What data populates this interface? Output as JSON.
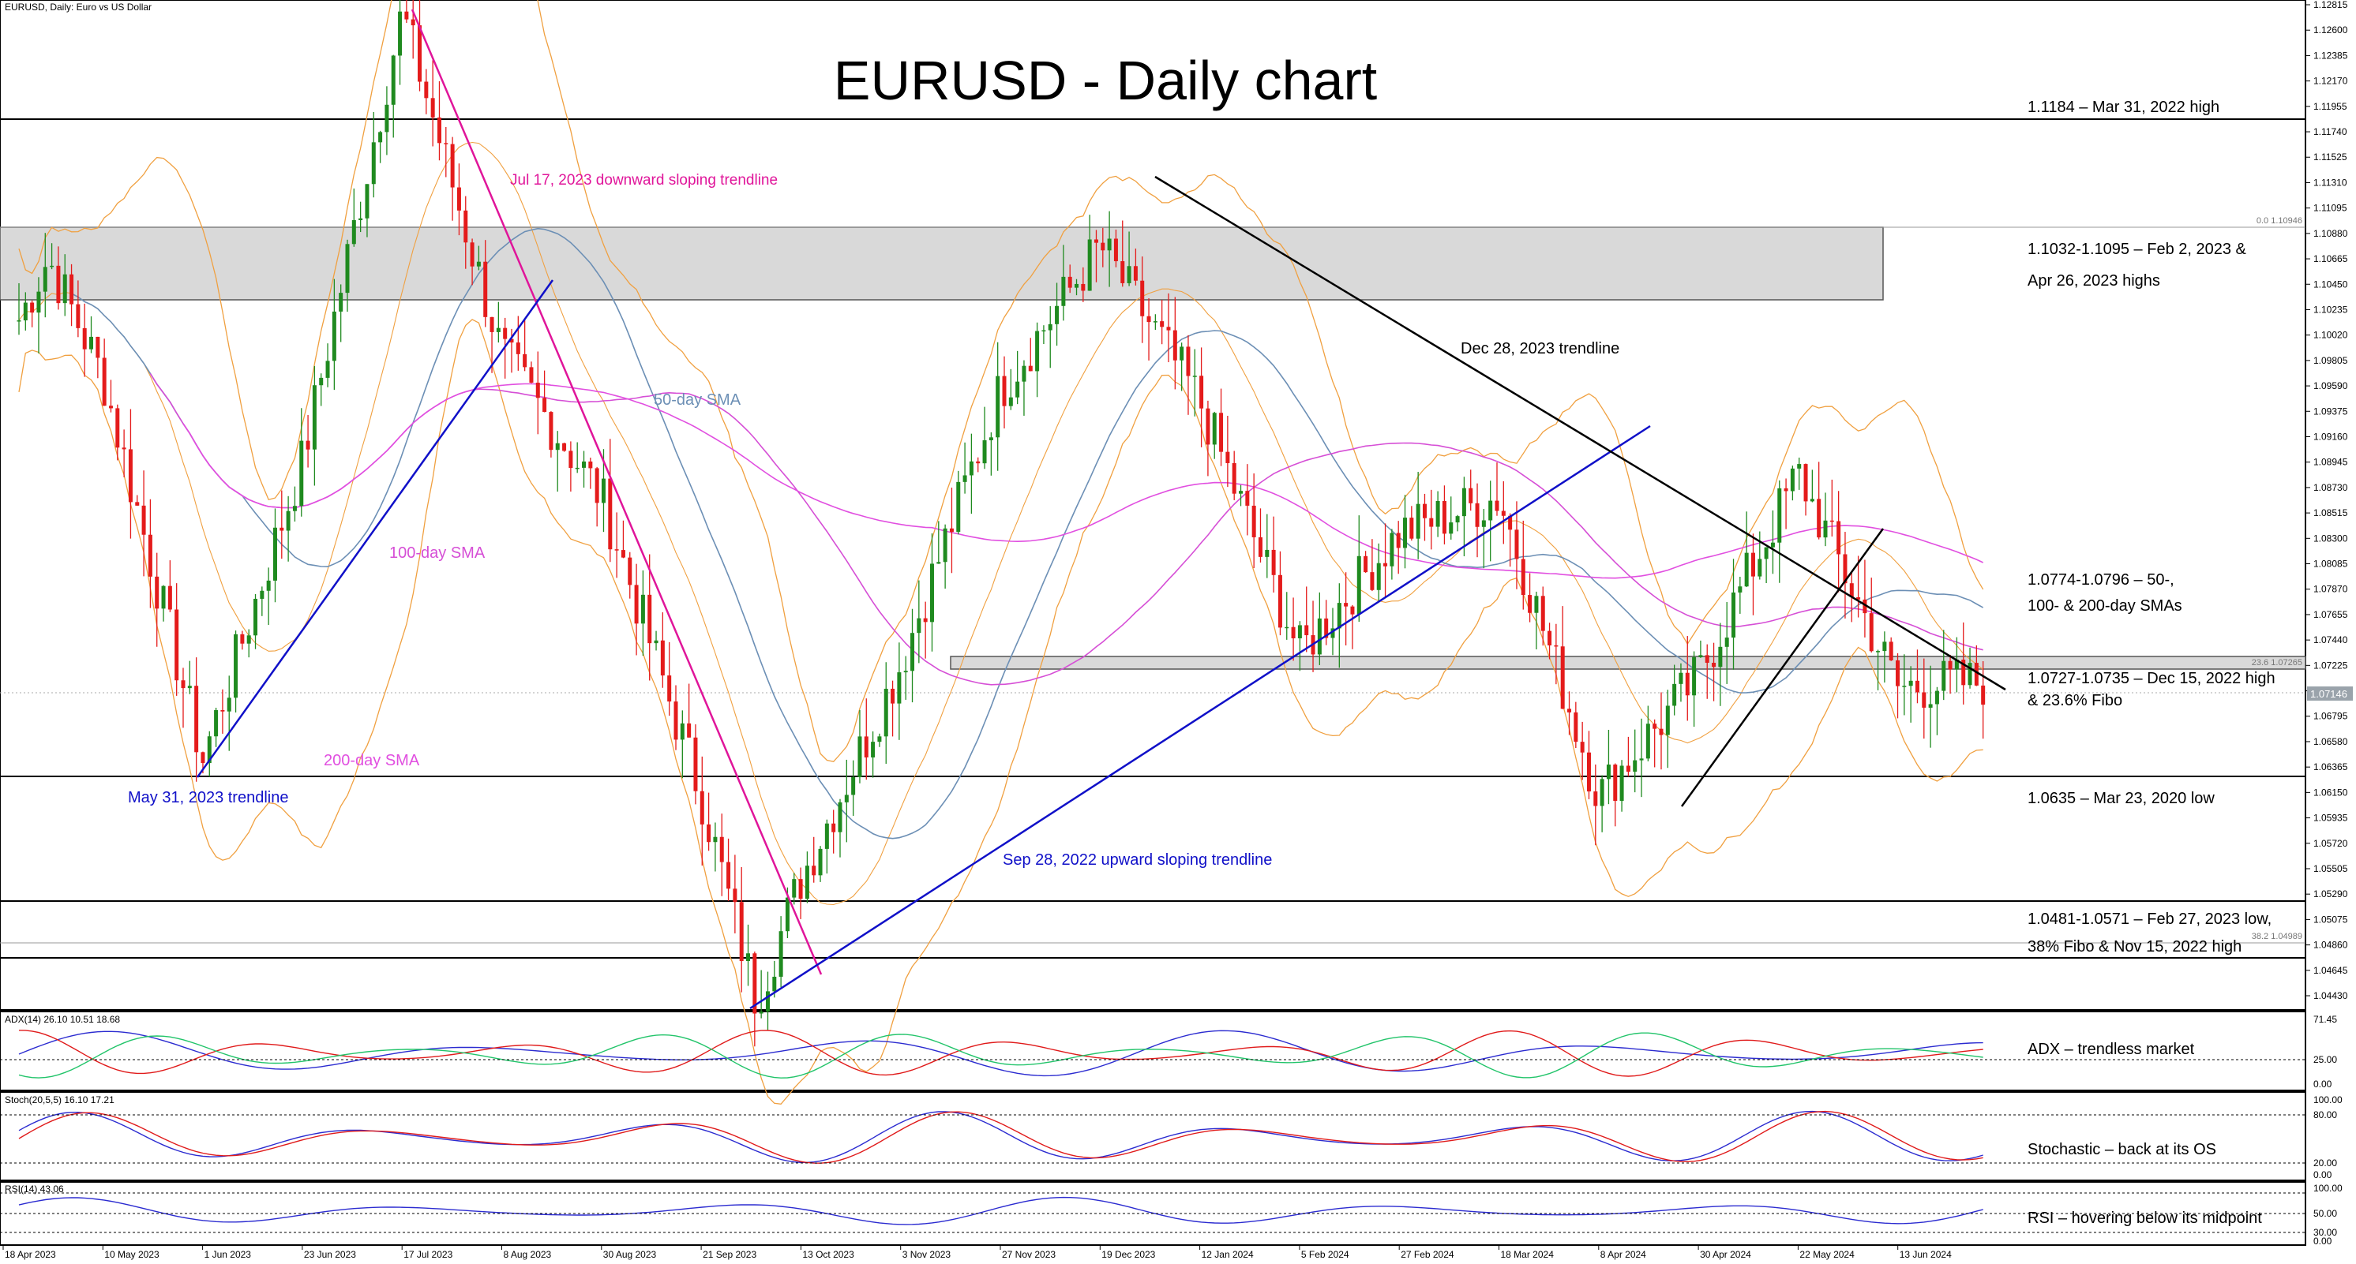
{
  "header": {
    "symbol_label": "EURUSD, Daily:  Euro vs US Dollar",
    "title": "EURUSD - Daily chart"
  },
  "price_axis_labels": [
    "1.12815",
    "1.12600",
    "1.12385",
    "1.12170",
    "1.11955",
    "1.11740",
    "1.11525",
    "1.11310",
    "1.11095",
    "1.10880",
    "1.10665",
    "1.10450",
    "1.10235",
    "1.10020",
    "1.09805",
    "1.09590",
    "1.09375",
    "1.09160",
    "1.08945",
    "1.08730",
    "1.08515",
    "1.08300",
    "1.08085",
    "1.07870",
    "1.07655",
    "1.07440",
    "1.07225",
    "1.07010",
    "1.06795",
    "1.06580",
    "1.06365",
    "1.06150",
    "1.05935",
    "1.05720",
    "1.05505",
    "1.05290",
    "1.05075",
    "1.04860",
    "1.04645",
    "1.04430"
  ],
  "current_price_tag": "1.07146",
  "date_labels": [
    "18 Apr 2023",
    "10 May 2023",
    "1 Jun 2023",
    "23 Jun 2023",
    "17 Jul 2023",
    "8 Aug 2023",
    "30 Aug 2023",
    "21 Sep 2023",
    "13 Oct 2023",
    "3 Nov 2023",
    "27 Nov 2023",
    "19 Dec 2023",
    "12 Jan 2024",
    "5 Feb 2024",
    "27 Feb 2024",
    "18 Mar 2024",
    "8 Apr 2024",
    "30 Apr 2024",
    "22 May 2024",
    "13 Jun 2024"
  ],
  "annotations": {
    "level_1184": "1.1184 – Mar 31, 2022 high",
    "zone_1032_1": "1.1032-1.1095 – Feb 2, 2023 &",
    "zone_1032_2": "Apr 26, 2023 highs",
    "smas_1": "1.0774-1.0796 – 50-,",
    "smas_2": "100- & 200-day SMAs",
    "zone_0727_1": "1.0727-1.0735 – Dec 15, 2022 high",
    "zone_0727_2": "& 23.6% Fibo",
    "level_0635": "1.0635 – Mar 23, 2020 low",
    "zone_0481_1": "1.0481-1.0571 – Feb 27, 2023 low,",
    "zone_0481_2": "38% Fibo & Nov 15, 2022 high",
    "fib_0": "0.0 1.10946",
    "fib_236": "23.6 1.07265",
    "fib_382": "38.2 1.04989",
    "tl_jul17": "Jul 17, 2023 downward sloping trendline",
    "tl_may31": "May 31, 2023 trendline",
    "tl_sep28": "Sep 28, 2022 upward sloping trendline",
    "tl_dec28": "Dec 28, 2023 trendline",
    "sma50": "50-day SMA",
    "sma100": "100-day SMA",
    "sma200": "200-day SMA"
  },
  "indicators": {
    "adx": {
      "header": "ADX(14) 26.10 10.51 18.68",
      "note": "ADX – trendless market",
      "axis": [
        "71.45",
        "25.00",
        "0.00"
      ]
    },
    "stoch": {
      "header": "Stoch(20,5,5) 16.10 17.21",
      "note": "Stochastic – back at its OS",
      "axis": [
        "100.00",
        "80.00",
        "20.00",
        "0.00"
      ]
    },
    "rsi": {
      "header": "RSI(14) 43.06",
      "note": "RSI – hovering below its midpoint",
      "axis": [
        "100.00",
        "50.00",
        "30.00",
        "0.00"
      ]
    }
  },
  "colors": {
    "bull": "#1f8a1f",
    "bear": "#e41b1b",
    "sma50": "#6c8fb5",
    "sma100": "#d64fd6",
    "sma200": "#e14fe0",
    "bollinger": "#f0a040",
    "trend_black": "#000000",
    "trend_blue": "#1010c8",
    "trend_magenta": "#e0159a",
    "zone_fill": "#d9d9d9"
  },
  "chart_data": {
    "type": "candlestick",
    "title": "EURUSD - Daily chart",
    "timeframe": "Daily",
    "y_range": [
      1.0443,
      1.1282
    ],
    "key_levels": [
      1.1184,
      1.1095,
      1.1032,
      1.0735,
      1.0727,
      1.0635,
      1.0571,
      1.0481
    ],
    "sma_levels": [
      1.0774,
      1.0796
    ],
    "fibonacci": [
      {
        "level": "0.0",
        "price": 1.10946
      },
      {
        "level": "23.6",
        "price": 1.07265
      },
      {
        "level": "38.2",
        "price": 1.04989
      }
    ],
    "last_close": 1.07146,
    "swing_path": [
      {
        "d": "18 Apr 2023",
        "p": 1.099
      },
      {
        "d": "28 Apr 2023",
        "p": 1.107
      },
      {
        "d": "10 May 2023",
        "p": 1.097
      },
      {
        "d": "1 Jun 2023",
        "p": 1.065
      },
      {
        "d": "23 Jun 2023",
        "p": 1.09
      },
      {
        "d": "17 Jul 2023",
        "p": 1.1276
      },
      {
        "d": "8 Aug 2023",
        "p": 1.099
      },
      {
        "d": "30 Aug 2023",
        "p": 1.087
      },
      {
        "d": "21 Sep 2023",
        "p": 1.062
      },
      {
        "d": "3 Oct 2023",
        "p": 1.0448
      },
      {
        "d": "13 Oct 2023",
        "p": 1.055
      },
      {
        "d": "3 Nov 2023",
        "p": 1.073
      },
      {
        "d": "27 Nov 2023",
        "p": 1.096
      },
      {
        "d": "19 Dec 2023",
        "p": 1.108
      },
      {
        "d": "12 Jan 2024",
        "p": 1.095
      },
      {
        "d": "5 Feb 2024",
        "p": 1.074
      },
      {
        "d": "27 Feb 2024",
        "p": 1.084
      },
      {
        "d": "18 Mar 2024",
        "p": 1.087
      },
      {
        "d": "8 Apr 2024",
        "p": 1.062
      },
      {
        "d": "30 Apr 2024",
        "p": 1.072
      },
      {
        "d": "22 May 2024",
        "p": 1.089
      },
      {
        "d": "13 Jun 2024",
        "p": 1.071
      },
      {
        "d": "24 Jun 2024",
        "p": 1.07146
      }
    ]
  }
}
